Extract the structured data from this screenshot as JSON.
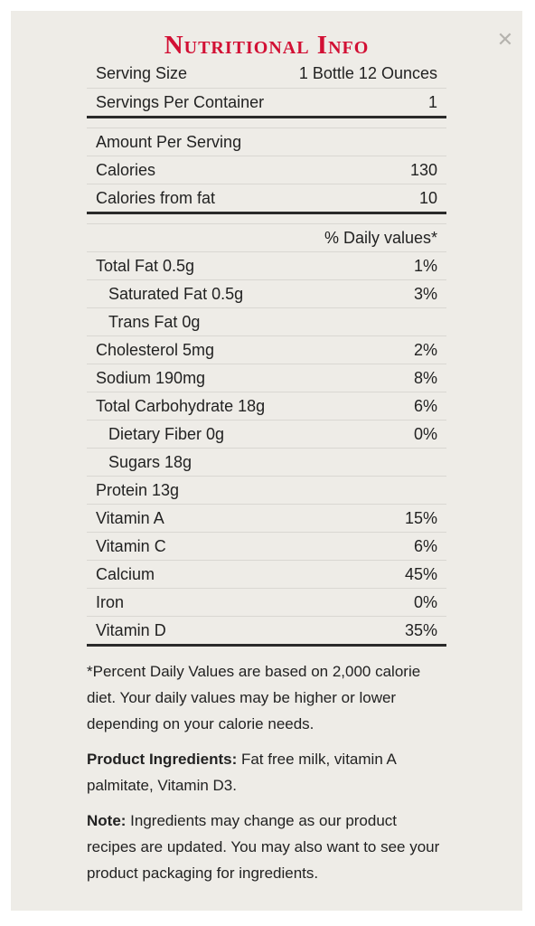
{
  "title": "Nutritional Info",
  "close_icon": "close-icon",
  "top_rows": [
    {
      "label": "Serving Size",
      "value": "1 Bottle 12 Ounces"
    },
    {
      "label": "Servings Per Container",
      "value": "1"
    }
  ],
  "calorie_rows": [
    {
      "label": "Amount Per Serving",
      "value": ""
    },
    {
      "label": "Calories",
      "value": "130"
    },
    {
      "label": "Calories from fat",
      "value": "10"
    }
  ],
  "daily_values_header": "% Daily values*",
  "nutrient_rows": [
    {
      "label": "Total Fat 0.5g",
      "value": "1%"
    },
    {
      "label": "Saturated Fat 0.5g",
      "value": "3%"
    },
    {
      "label": "Trans Fat 0g",
      "value": ""
    },
    {
      "label": "Cholesterol 5mg",
      "value": "2%"
    },
    {
      "label": "Sodium 190mg",
      "value": "8%"
    },
    {
      "label": "Total Carbohydrate 18g",
      "value": "6%"
    },
    {
      "label": "Dietary Fiber 0g",
      "value": "0%"
    },
    {
      "label": "Sugars 18g",
      "value": ""
    },
    {
      "label": "Protein 13g",
      "value": ""
    },
    {
      "label": "Vitamin A",
      "value": "15%"
    },
    {
      "label": "Vitamin C",
      "value": "6%"
    },
    {
      "label": "Calcium",
      "value": "45%"
    },
    {
      "label": "Iron",
      "value": "0%"
    },
    {
      "label": "Vitamin D",
      "value": "35%"
    }
  ],
  "footnote": "*Percent Daily Values are based on 2,000 calorie diet. Your daily values may be higher or lower depending on your calorie needs.",
  "ingredients_label": "Product Ingredients:",
  "ingredients_text": " Fat free milk, vitamin A palmitate, Vitamin D3.",
  "note_label": "Note:",
  "note_text": " Ingredients may change as our product recipes are updated. You may also want to see your product packaging for ingredients.",
  "colors": {
    "title": "#d21034",
    "panel": "#eeece7",
    "rule": "#2a2a2a"
  }
}
